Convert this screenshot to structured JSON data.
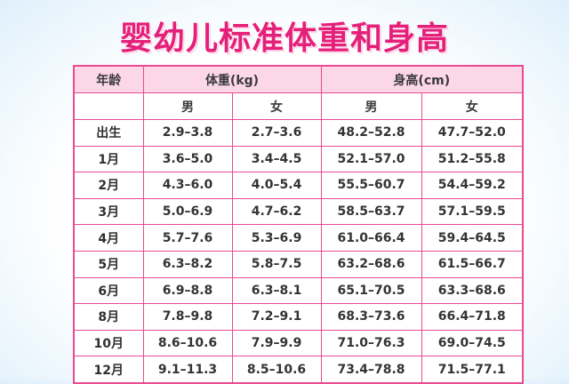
{
  "title": "婴幼儿标准体重和身高",
  "headers": {
    "age": "年龄",
    "weight": "体重(kg)",
    "height": "身高(cm)",
    "male": "男",
    "female": "女"
  },
  "rows": [
    {
      "age": "出生",
      "w_m": "2.9–3.8",
      "w_f": "2.7–3.6",
      "h_m": "48.2–52.8",
      "h_f": "47.7–52.0"
    },
    {
      "age": "1月",
      "w_m": "3.6–5.0",
      "w_f": "3.4–4.5",
      "h_m": "52.1–57.0",
      "h_f": "51.2–55.8"
    },
    {
      "age": "2月",
      "w_m": "4.3–6.0",
      "w_f": "4.0–5.4",
      "h_m": "55.5–60.7",
      "h_f": "54.4–59.2"
    },
    {
      "age": "3月",
      "w_m": "5.0–6.9",
      "w_f": "4.7–6.2",
      "h_m": "58.5–63.7",
      "h_f": "57.1–59.5"
    },
    {
      "age": "4月",
      "w_m": "5.7–7.6",
      "w_f": "5.3–6.9",
      "h_m": "61.0–66.4",
      "h_f": "59.4–64.5"
    },
    {
      "age": "5月",
      "w_m": "6.3–8.2",
      "w_f": "5.8–7.5",
      "h_m": "63.2–68.6",
      "h_f": "61.5–66.7"
    },
    {
      "age": "6月",
      "w_m": "6.9–8.8",
      "w_f": "6.3–8.1",
      "h_m": "65.1–70.5",
      "h_f": "63.3–68.6"
    },
    {
      "age": "8月",
      "w_m": "7.8–9.8",
      "w_f": "7.2–9.1",
      "h_m": "68.3–73.6",
      "h_f": "66.4–71.8"
    },
    {
      "age": "10月",
      "w_m": "8.6–10.6",
      "w_f": "7.9–9.9",
      "h_m": "71.0–76.3",
      "h_f": "69.0–74.5"
    },
    {
      "age": "12月",
      "w_m": "9.1–11.3",
      "w_f": "8.5–10.6",
      "h_m": "73.4–78.8",
      "h_f": "71.5–77.1"
    }
  ],
  "colors": {
    "title": "#e4207a",
    "border": "#e94a92",
    "header_bg": "#fbd7e7",
    "page_glow": "#dff0fb"
  }
}
